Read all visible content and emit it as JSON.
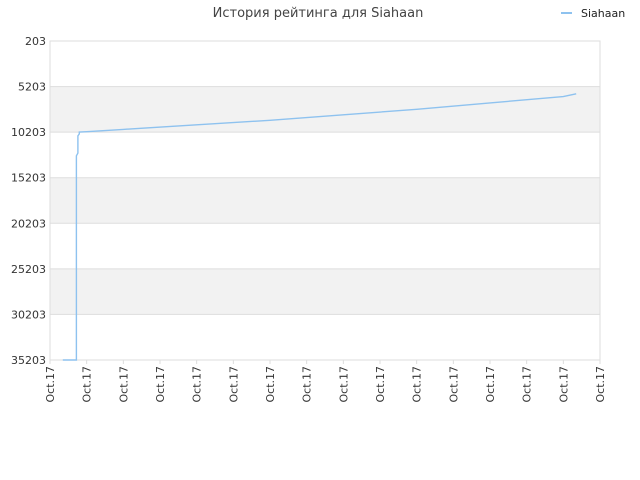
{
  "chart_data": {
    "type": "line",
    "title": "История рейтинга для Siahaan",
    "xlabel": "",
    "ylabel": "",
    "y_inverted": true,
    "ylim": [
      203,
      35203
    ],
    "y_ticks": [
      203,
      5203,
      10203,
      15203,
      20203,
      25203,
      30203,
      35203
    ],
    "x_ticks": [
      "Oct.17",
      "Oct.17",
      "Oct.17",
      "Oct.17",
      "Oct.17",
      "Oct.17",
      "Oct.17",
      "Oct.17",
      "Oct.17",
      "Oct.17",
      "Oct.17",
      "Oct.17",
      "Oct.17",
      "Oct.17",
      "Oct.17",
      "Oct.17"
    ],
    "xlim": [
      0,
      15
    ],
    "legend_position": "top-right",
    "grid": true,
    "colors": {
      "series": "#8ec2ef",
      "band": "#f2f2f2",
      "grid": "#dddddd"
    },
    "series": [
      {
        "name": "Siahaan",
        "points": [
          [
            0.35,
            35203
          ],
          [
            0.72,
            35203
          ],
          [
            0.72,
            12800
          ],
          [
            0.76,
            12500
          ],
          [
            0.76,
            10600
          ],
          [
            0.8,
            10400
          ],
          [
            0.8,
            10203
          ],
          [
            1.0,
            10150
          ],
          [
            2.0,
            9900
          ],
          [
            4.0,
            9400
          ],
          [
            6.0,
            8900
          ],
          [
            8.0,
            8300
          ],
          [
            10.0,
            7700
          ],
          [
            12.0,
            7000
          ],
          [
            14.0,
            6300
          ],
          [
            14.35,
            6000
          ]
        ]
      }
    ]
  }
}
